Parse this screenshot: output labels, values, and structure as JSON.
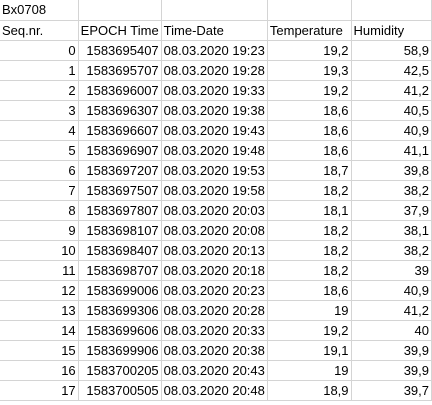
{
  "sheet": {
    "title_cell": "Bx0708",
    "headers": [
      "Seq.nr.",
      "EPOCH Time",
      "Time-Date",
      "Temperature",
      "Humidity"
    ],
    "rows": [
      [
        "0",
        "1583695407",
        "08.03.2020 19:23",
        "19,2",
        "58,9"
      ],
      [
        "1",
        "1583695707",
        "08.03.2020 19:28",
        "19,3",
        "42,5"
      ],
      [
        "2",
        "1583696007",
        "08.03.2020 19:33",
        "19,2",
        "41,2"
      ],
      [
        "3",
        "1583696307",
        "08.03.2020 19:38",
        "18,6",
        "40,5"
      ],
      [
        "4",
        "1583696607",
        "08.03.2020 19:43",
        "18,6",
        "40,9"
      ],
      [
        "5",
        "1583696907",
        "08.03.2020 19:48",
        "18,6",
        "41,1"
      ],
      [
        "6",
        "1583697207",
        "08.03.2020 19:53",
        "18,7",
        "39,8"
      ],
      [
        "7",
        "1583697507",
        "08.03.2020 19:58",
        "18,2",
        "38,2"
      ],
      [
        "8",
        "1583697807",
        "08.03.2020 20:03",
        "18,1",
        "37,9"
      ],
      [
        "9",
        "1583698107",
        "08.03.2020 20:08",
        "18,2",
        "38,1"
      ],
      [
        "10",
        "1583698407",
        "08.03.2020 20:13",
        "18,2",
        "38,2"
      ],
      [
        "11",
        "1583698707",
        "08.03.2020 20:18",
        "18,2",
        "39"
      ],
      [
        "12",
        "1583699006",
        "08.03.2020 20:23",
        "18,6",
        "40,9"
      ],
      [
        "13",
        "1583699306",
        "08.03.2020 20:28",
        "19",
        "41,2"
      ],
      [
        "14",
        "1583699606",
        "08.03.2020 20:33",
        "19,2",
        "40"
      ],
      [
        "15",
        "1583699906",
        "08.03.2020 20:38",
        "19,1",
        "39,9"
      ],
      [
        "16",
        "1583700205",
        "08.03.2020 20:43",
        "19",
        "39,9"
      ],
      [
        "17",
        "1583700505",
        "08.03.2020 20:48",
        "18,9",
        "39,7"
      ]
    ]
  }
}
